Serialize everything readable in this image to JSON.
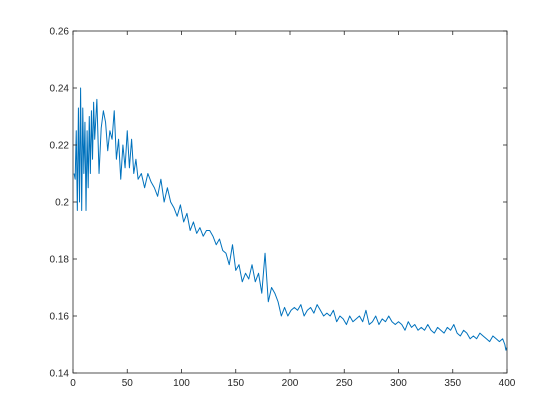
{
  "chart_data": {
    "type": "line",
    "title": "",
    "xlabel": "",
    "ylabel": "",
    "xlim": [
      0,
      400
    ],
    "ylim": [
      0.14,
      0.26
    ],
    "xticks": [
      0,
      50,
      100,
      150,
      200,
      250,
      300,
      350,
      400
    ],
    "yticks": [
      0.14,
      0.16,
      0.18,
      0.2,
      0.22,
      0.24,
      0.26
    ],
    "xtick_labels": [
      "0",
      "50",
      "100",
      "150",
      "200",
      "250",
      "300",
      "350",
      "400"
    ],
    "ytick_labels": [
      "0.14",
      "0.16",
      "0.18",
      "0.2",
      "0.22",
      "0.24",
      "0.26"
    ],
    "grid": false,
    "legend": "none",
    "series": [
      {
        "color": "#0072BD",
        "x": [
          1,
          2,
          3,
          4,
          5,
          6,
          7,
          8,
          9,
          10,
          11,
          12,
          13,
          14,
          15,
          16,
          17,
          18,
          19,
          20,
          22,
          24,
          26,
          28,
          30,
          32,
          34,
          36,
          38,
          40,
          42,
          44,
          46,
          48,
          50,
          52,
          54,
          56,
          58,
          60,
          63,
          66,
          69,
          72,
          75,
          78,
          81,
          84,
          87,
          90,
          93,
          96,
          99,
          102,
          105,
          108,
          111,
          114,
          117,
          120,
          123,
          126,
          129,
          132,
          135,
          138,
          141,
          144,
          147,
          150,
          153,
          156,
          159,
          162,
          165,
          168,
          171,
          174,
          177,
          180,
          183,
          186,
          189,
          192,
          195,
          198,
          201,
          204,
          207,
          210,
          213,
          216,
          219,
          222,
          225,
          228,
          231,
          234,
          237,
          240,
          243,
          246,
          249,
          252,
          255,
          258,
          261,
          264,
          267,
          270,
          273,
          276,
          279,
          282,
          285,
          288,
          291,
          294,
          297,
          300,
          303,
          306,
          309,
          312,
          315,
          318,
          321,
          324,
          327,
          330,
          333,
          336,
          339,
          342,
          345,
          348,
          351,
          354,
          357,
          360,
          363,
          366,
          369,
          372,
          375,
          378,
          381,
          384,
          387,
          390,
          393,
          396,
          398,
          399,
          400
        ],
        "y": [
          0.21,
          0.208,
          0.225,
          0.197,
          0.233,
          0.2,
          0.24,
          0.197,
          0.233,
          0.21,
          0.228,
          0.197,
          0.225,
          0.205,
          0.23,
          0.21,
          0.232,
          0.215,
          0.235,
          0.222,
          0.236,
          0.21,
          0.226,
          0.232,
          0.228,
          0.218,
          0.225,
          0.222,
          0.232,
          0.215,
          0.222,
          0.208,
          0.22,
          0.212,
          0.225,
          0.212,
          0.222,
          0.21,
          0.215,
          0.208,
          0.21,
          0.205,
          0.21,
          0.207,
          0.205,
          0.202,
          0.208,
          0.2,
          0.205,
          0.2,
          0.198,
          0.195,
          0.199,
          0.193,
          0.196,
          0.19,
          0.193,
          0.189,
          0.191,
          0.188,
          0.19,
          0.19,
          0.188,
          0.185,
          0.187,
          0.183,
          0.182,
          0.178,
          0.185,
          0.176,
          0.178,
          0.172,
          0.175,
          0.173,
          0.178,
          0.172,
          0.175,
          0.168,
          0.182,
          0.165,
          0.17,
          0.168,
          0.165,
          0.16,
          0.163,
          0.16,
          0.162,
          0.163,
          0.162,
          0.164,
          0.16,
          0.162,
          0.163,
          0.161,
          0.164,
          0.162,
          0.16,
          0.161,
          0.16,
          0.162,
          0.158,
          0.16,
          0.159,
          0.157,
          0.16,
          0.158,
          0.159,
          0.16,
          0.158,
          0.162,
          0.157,
          0.158,
          0.16,
          0.157,
          0.159,
          0.158,
          0.16,
          0.158,
          0.157,
          0.158,
          0.157,
          0.155,
          0.158,
          0.156,
          0.157,
          0.155,
          0.156,
          0.155,
          0.157,
          0.155,
          0.154,
          0.156,
          0.155,
          0.154,
          0.156,
          0.155,
          0.157,
          0.154,
          0.153,
          0.155,
          0.154,
          0.152,
          0.153,
          0.152,
          0.154,
          0.153,
          0.152,
          0.151,
          0.153,
          0.152,
          0.151,
          0.152,
          0.15,
          0.148,
          0.149
        ]
      }
    ]
  }
}
